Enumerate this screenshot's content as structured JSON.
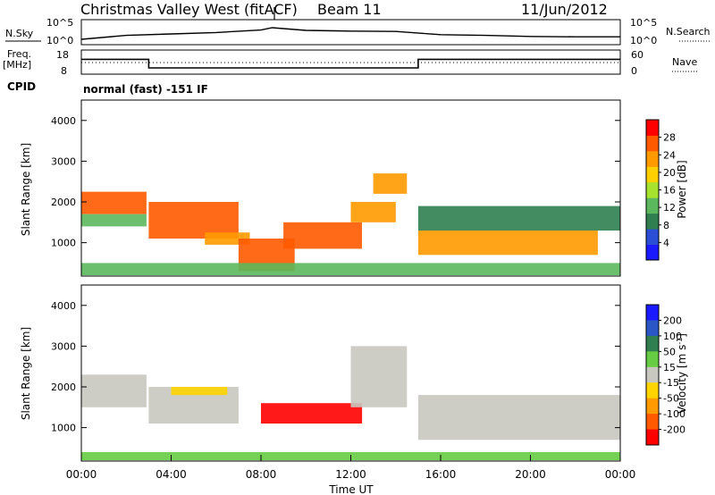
{
  "header": {
    "station": "Christmas Valley West (fitACF)",
    "beam": "Beam 11",
    "date": "11/Jun/2012"
  },
  "panels": {
    "noise": {
      "left_label": "N.Sky",
      "right_label": "N.Search",
      "left_ticks": [
        "10^5",
        "10^0"
      ],
      "right_ticks": [
        "10^5",
        "10^0"
      ]
    },
    "freq": {
      "left_label_line1": "Freq.",
      "left_label_line2": "[MHz]",
      "right_label": "Nave",
      "left_ticks": [
        "18",
        "8"
      ],
      "right_ticks": [
        "60",
        "0"
      ]
    },
    "cpid": {
      "label": "CPID",
      "text": "normal (fast) -151 IF"
    }
  },
  "chart_data": [
    {
      "type": "line",
      "name": "noise",
      "x": [
        "00:00",
        "02:00",
        "04:00",
        "06:00",
        "08:00",
        "08:30",
        "10:00",
        "12:00",
        "14:00",
        "16:00",
        "18:00",
        "20:00",
        "22:00",
        "24:00"
      ],
      "series": [
        {
          "name": "N.Sky",
          "values": [
            0.2,
            0.42,
            0.5,
            0.58,
            0.72,
            0.85,
            0.7,
            0.66,
            0.64,
            0.46,
            0.42,
            0.36,
            0.34,
            0.34
          ]
        }
      ]
    },
    {
      "type": "line",
      "name": "frequency",
      "x": [
        "00:00",
        "03:00",
        "03:00",
        "15:00",
        "15:00",
        "24:00"
      ],
      "series": [
        {
          "name": "Freq.",
          "values": [
            14.5,
            14.5,
            10.5,
            10.5,
            14.5,
            14.5
          ]
        },
        {
          "name": "Nave",
          "values": [
            20,
            20,
            20,
            20,
            20,
            20
          ]
        }
      ],
      "ylim": [
        8,
        18
      ]
    },
    {
      "type": "heatmap",
      "name": "power",
      "ylabel": "Slant Range [km]",
      "ylim": [
        180,
        4500
      ],
      "yticks": [
        "1000",
        "2000",
        "3000",
        "4000"
      ],
      "colorbar": {
        "label": "Power [dB]",
        "ticks": [
          "4",
          "8",
          "12",
          "16",
          "20",
          "24",
          "28"
        ],
        "colors": [
          "#1a1aff",
          "#2a4ed6",
          "#2f7f50",
          "#5cb85c",
          "#a6e22e",
          "#ffd000",
          "#ff9a00",
          "#ff5a00",
          "#ff0000"
        ]
      },
      "regions": [
        {
          "t": [
            0.0,
            2.9
          ],
          "r": [
            1700,
            2250
          ],
          "level": 28
        },
        {
          "t": [
            0.0,
            2.9
          ],
          "r": [
            1400,
            1700
          ],
          "level": 14
        },
        {
          "t": [
            3.0,
            7.0
          ],
          "r": [
            1100,
            2000
          ],
          "level": 27
        },
        {
          "t": [
            5.5,
            7.5
          ],
          "r": [
            950,
            1250
          ],
          "level": 22
        },
        {
          "t": [
            7.0,
            9.5
          ],
          "r": [
            300,
            1100
          ],
          "level": 25
        },
        {
          "t": [
            9.0,
            12.5
          ],
          "r": [
            850,
            1500
          ],
          "level": 27
        },
        {
          "t": [
            12.0,
            14.0
          ],
          "r": [
            1500,
            2000
          ],
          "level": 24
        },
        {
          "t": [
            13.0,
            14.5
          ],
          "r": [
            2200,
            2700
          ],
          "level": 22
        },
        {
          "t": [
            15.0,
            23.0
          ],
          "r": [
            700,
            1300
          ],
          "level": 24
        },
        {
          "t": [
            15.0,
            24.0
          ],
          "r": [
            1300,
            1900
          ],
          "level": 10
        },
        {
          "t": [
            0.0,
            24.0
          ],
          "r": [
            200,
            500
          ],
          "level": 14
        }
      ]
    },
    {
      "type": "heatmap",
      "name": "velocity",
      "xlabel": "Time UT",
      "xticks": [
        "00:00",
        "04:00",
        "08:00",
        "12:00",
        "16:00",
        "20:00",
        "00:00"
      ],
      "ylabel": "Slant Range [km]",
      "ylim": [
        180,
        4500
      ],
      "yticks": [
        "1000",
        "2000",
        "3000",
        "4000"
      ],
      "colorbar": {
        "label": "Velocity [m s",
        "label_sup": "-1",
        "label_end": "]",
        "ticks": [
          "200",
          "100",
          "50",
          "15",
          "-15",
          "-50",
          "-100",
          "-200"
        ],
        "colors": [
          "#1a1aff",
          "#2a56c6",
          "#2f7f50",
          "#66cc44",
          "#c8c8c0",
          "#ffd400",
          "#ff9a00",
          "#ff5a00",
          "#ff0000"
        ]
      },
      "regions": [
        {
          "t": [
            0.0,
            2.9
          ],
          "r": [
            1500,
            2300
          ],
          "level": 0
        },
        {
          "t": [
            3.0,
            7.0
          ],
          "r": [
            1100,
            2000
          ],
          "level": 0
        },
        {
          "t": [
            4.0,
            6.5
          ],
          "r": [
            1800,
            2000
          ],
          "level": -30
        },
        {
          "t": [
            8.0,
            12.5
          ],
          "r": [
            1100,
            1600
          ],
          "level": -150
        },
        {
          "t": [
            12.0,
            14.5
          ],
          "r": [
            1500,
            3000
          ],
          "level": 0
        },
        {
          "t": [
            15.0,
            24.0
          ],
          "r": [
            700,
            1800
          ],
          "level": 0
        },
        {
          "t": [
            0.0,
            24.0
          ],
          "r": [
            200,
            400
          ],
          "level": 40
        }
      ]
    }
  ]
}
